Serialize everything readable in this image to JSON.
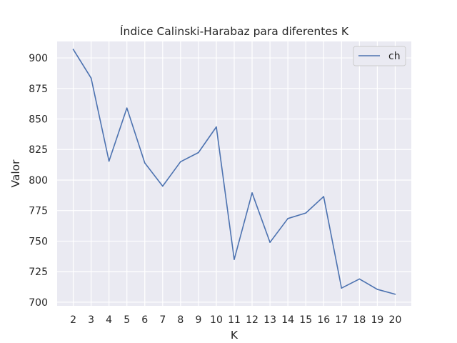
{
  "chart_data": {
    "type": "line",
    "title": "Índice Calinski-Harabaz para diferentes K",
    "xlabel": "K",
    "ylabel": "Valor",
    "x": [
      2,
      3,
      4,
      5,
      6,
      7,
      8,
      9,
      10,
      11,
      12,
      13,
      14,
      15,
      16,
      17,
      18,
      19,
      20
    ],
    "series": [
      {
        "name": "ch",
        "color": "#4c72b0",
        "values": [
          907,
          883.5,
          815.5,
          859,
          814,
          795,
          815,
          822.5,
          843.5,
          735,
          789.5,
          749,
          768.5,
          773,
          786.5,
          711.5,
          719,
          710.5,
          706.5
        ]
      }
    ],
    "yticks": [
      700,
      725,
      750,
      775,
      800,
      825,
      850,
      875,
      900
    ],
    "ylim": [
      697,
      913.5
    ],
    "xlim": [
      1.1,
      20.9
    ],
    "grid": true,
    "legend": "top-right",
    "background": "#eaeaf2",
    "gridColor": "#ffffff"
  }
}
